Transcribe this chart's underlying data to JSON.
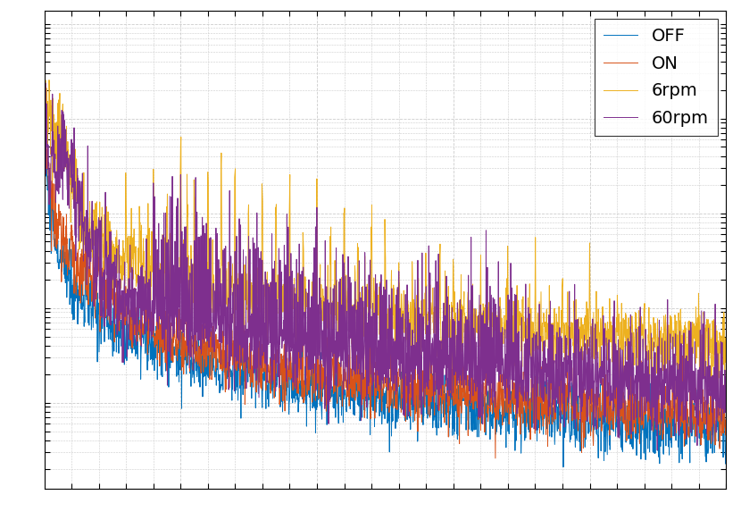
{
  "legend_labels": [
    "OFF",
    "ON",
    "6rpm",
    "60rpm"
  ],
  "colors": [
    "#0072BD",
    "#D95319",
    "#EDB120",
    "#7E2F8E"
  ],
  "background_color": "#FFFFFF",
  "grid_color": "#CCCCCC",
  "figsize": [
    8.3,
    5.82
  ],
  "dpi": 100,
  "legend_fontsize": 14,
  "tick_fontsize": 10
}
